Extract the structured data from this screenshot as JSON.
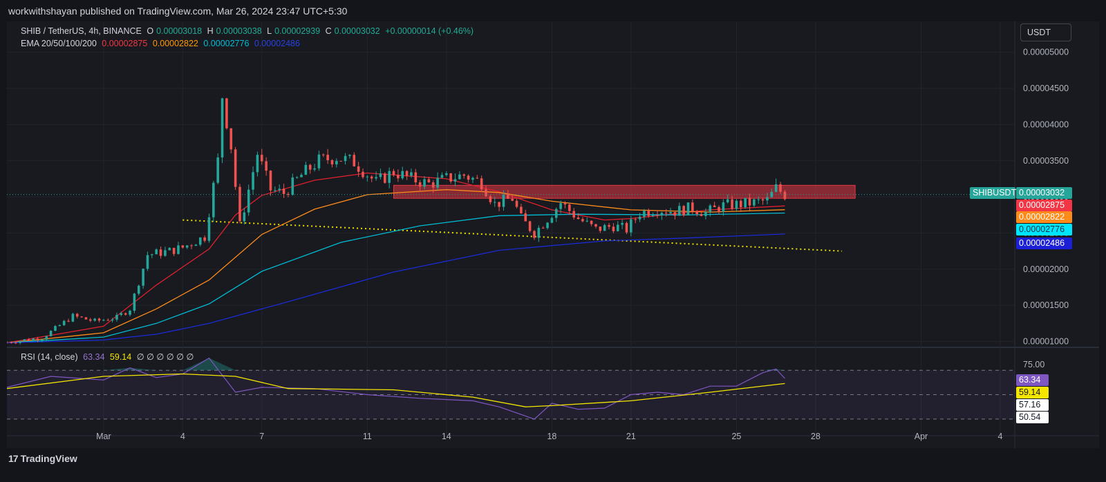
{
  "publisher": "workwithshayan published on TradingView.com, Mar 26, 2024 23:47 UTC+5:30",
  "brand": "TradingView",
  "currency_button": "USDT",
  "legend": {
    "symbol": "SHIB / TetherUS, 4h, BINANCE",
    "open_label": "O",
    "open": "0.00003018",
    "high_label": "H",
    "high": "0.00003038",
    "low_label": "L",
    "low": "0.00002939",
    "close_label": "C",
    "close": "0.00003032",
    "change": "+0.00000014 (+0.46%)",
    "ema_label": "EMA 20/50/100/200",
    "ema20": "0.00002875",
    "ema50": "0.00002822",
    "ema100": "0.00002776",
    "ema200": "0.00002486",
    "rsi_label": "RSI (14, close)",
    "rsi_value": "63.34",
    "rsi_ma": "59.14",
    "rsi_zeros": "∅ ∅ ∅ ∅ ∅ ∅"
  },
  "price_tags": {
    "symbol": "SHIBUSDT",
    "last": "0.00003032",
    "ema20": "0.00002875",
    "ema50": "0.00002822",
    "ema100": "0.00002776",
    "ema200": "0.00002486",
    "rsi": "63.34",
    "rsi_ma": "59.14",
    "rsi_hi": "57.16",
    "rsi_lo": "50.54"
  },
  "colors": {
    "up": "#26a69a",
    "down": "#ef5350",
    "ema20": "#e0202f",
    "ema50": "#ff8c1a",
    "ema100": "#00bcd4",
    "ema200": "#1b2bd6",
    "rsi": "#7e57c2",
    "rsi_ma": "#f5e600",
    "trendline": "#f0e000",
    "zone": "#e53945"
  },
  "chart_data": {
    "type": "candlestick",
    "interval": "4h",
    "y_axis": {
      "ticks": [
        "0.00001000",
        "0.00001500",
        "0.00002000",
        "0.00002500",
        "0.00003000",
        "0.00003500",
        "0.00004000",
        "0.00004500",
        "0.00005000"
      ],
      "tick_values": [
        1e-05,
        1.5e-05,
        2e-05,
        2.5e-05,
        3e-05,
        3.5e-05,
        4e-05,
        4.5e-05,
        5e-05
      ],
      "range": [
        9.85e-06,
        5.16e-05
      ]
    },
    "x_axis": {
      "ticks": [
        "Mar",
        "4",
        "7",
        "11",
        "14",
        "18",
        "21",
        "25",
        "28",
        "Apr",
        "4"
      ],
      "tick_dates": [
        "2024-03-01",
        "2024-03-04",
        "2024-03-07",
        "2024-03-11",
        "2024-03-14",
        "2024-03-18",
        "2024-03-21",
        "2024-03-25",
        "2024-03-28",
        "2024-04-01",
        "2024-04-04"
      ],
      "range": [
        "2024-02-26T08:00",
        "2024-04-04T12:00"
      ]
    },
    "close_path": [
      [
        "2024-02-26T08:00",
        9.9e-06
      ],
      [
        "2024-02-27T16:00",
        1.05e-05
      ],
      [
        "2024-02-28T20:00",
        1.35e-05
      ],
      [
        "2024-02-29T16:00",
        1.28e-05
      ],
      [
        "2024-03-01T12:00",
        1.33e-05
      ],
      [
        "2024-03-02T00:00",
        1.45e-05
      ],
      [
        "2024-03-02T16:00",
        2.2e-05
      ],
      [
        "2024-03-03T12:00",
        2.25e-05
      ],
      [
        "2024-03-04T00:00",
        2.3e-05
      ],
      [
        "2024-03-04T20:00",
        2.45e-05
      ],
      [
        "2024-03-05T08:00",
        3.5e-05
      ],
      [
        "2024-03-05T12:00",
        4.4e-05
      ],
      [
        "2024-03-05T20:00",
        3.7e-05
      ],
      [
        "2024-03-06T04:00",
        2.6e-05
      ],
      [
        "2024-03-06T12:00",
        3.1e-05
      ],
      [
        "2024-03-06T20:00",
        3.6e-05
      ],
      [
        "2024-03-07T08:00",
        3.1e-05
      ],
      [
        "2024-03-07T20:00",
        3.05e-05
      ],
      [
        "2024-03-08T12:00",
        3.3e-05
      ],
      [
        "2024-03-09T04:00",
        3.5e-05
      ],
      [
        "2024-03-09T20:00",
        3.55e-05
      ],
      [
        "2024-03-10T12:00",
        3.48e-05
      ],
      [
        "2024-03-11T08:00",
        3.2e-05
      ],
      [
        "2024-03-12T00:00",
        3.35e-05
      ],
      [
        "2024-03-12T16:00",
        3.25e-05
      ],
      [
        "2024-03-13T08:00",
        3.18e-05
      ],
      [
        "2024-03-14T00:00",
        3.25e-05
      ],
      [
        "2024-03-14T16:00",
        3.3e-05
      ],
      [
        "2024-03-15T08:00",
        3.2e-05
      ],
      [
        "2024-03-15T20:00",
        2.9e-05
      ],
      [
        "2024-03-16T12:00",
        2.98e-05
      ],
      [
        "2024-03-16T20:00",
        2.7e-05
      ],
      [
        "2024-03-17T08:00",
        2.5e-05
      ],
      [
        "2024-03-17T20:00",
        2.7e-05
      ],
      [
        "2024-03-18T08:00",
        2.92e-05
      ],
      [
        "2024-03-19T00:00",
        2.7e-05
      ],
      [
        "2024-03-19T16:00",
        2.55e-05
      ],
      [
        "2024-03-20T08:00",
        2.6e-05
      ],
      [
        "2024-03-20T20:00",
        2.55e-05
      ],
      [
        "2024-03-21T08:00",
        2.78e-05
      ],
      [
        "2024-03-22T00:00",
        2.83e-05
      ],
      [
        "2024-03-22T16:00",
        2.8e-05
      ],
      [
        "2024-03-23T08:00",
        2.85e-05
      ],
      [
        "2024-03-23T20:00",
        2.78e-05
      ],
      [
        "2024-03-24T12:00",
        2.88e-05
      ],
      [
        "2024-03-25T04:00",
        2.9e-05
      ],
      [
        "2024-03-25T16:00",
        2.92e-05
      ],
      [
        "2024-03-26T04:00",
        2.95e-05
      ],
      [
        "2024-03-26T12:00",
        3.12e-05
      ],
      [
        "2024-03-26T20:00",
        3.032e-05
      ]
    ],
    "ema_series": [
      {
        "name": "EMA 20",
        "last": 2.875e-05,
        "path": [
          [
            "2024-02-26T08:00",
            9.8e-06
          ],
          [
            "2024-03-01T00:00",
            1.21e-05
          ],
          [
            "2024-03-03T00:00",
            1.78e-05
          ],
          [
            "2024-03-05T00:00",
            2.28e-05
          ],
          [
            "2024-03-06T00:00",
            2.75e-05
          ],
          [
            "2024-03-07T00:00",
            3.02e-05
          ],
          [
            "2024-03-09T00:00",
            3.23e-05
          ],
          [
            "2024-03-11T00:00",
            3.33e-05
          ],
          [
            "2024-03-14T00:00",
            3.25e-05
          ],
          [
            "2024-03-16T00:00",
            3.07e-05
          ],
          [
            "2024-03-18T00:00",
            2.82e-05
          ],
          [
            "2024-03-20T00:00",
            2.68e-05
          ],
          [
            "2024-03-21T00:00",
            2.7e-05
          ],
          [
            "2024-03-24T00:00",
            2.82e-05
          ],
          [
            "2024-03-26T20:00",
            2.875e-05
          ]
        ]
      },
      {
        "name": "EMA 50",
        "last": 2.822e-05,
        "path": [
          [
            "2024-02-26T08:00",
            9.8e-06
          ],
          [
            "2024-03-01T00:00",
            1.12e-05
          ],
          [
            "2024-03-03T00:00",
            1.45e-05
          ],
          [
            "2024-03-05T00:00",
            1.85e-05
          ],
          [
            "2024-03-07T00:00",
            2.48e-05
          ],
          [
            "2024-03-09T00:00",
            2.83e-05
          ],
          [
            "2024-03-11T00:00",
            3.03e-05
          ],
          [
            "2024-03-14T00:00",
            3.1e-05
          ],
          [
            "2024-03-16T00:00",
            3.06e-05
          ],
          [
            "2024-03-18T00:00",
            2.94e-05
          ],
          [
            "2024-03-21T00:00",
            2.82e-05
          ],
          [
            "2024-03-24T00:00",
            2.79e-05
          ],
          [
            "2024-03-26T20:00",
            2.822e-05
          ]
        ]
      },
      {
        "name": "EMA 100",
        "last": 2.776e-05,
        "path": [
          [
            "2024-02-26T08:00",
            9.8e-06
          ],
          [
            "2024-03-01T00:00",
            1.06e-05
          ],
          [
            "2024-03-03T00:00",
            1.25e-05
          ],
          [
            "2024-03-05T00:00",
            1.52e-05
          ],
          [
            "2024-03-07T00:00",
            1.97e-05
          ],
          [
            "2024-03-10T00:00",
            2.37e-05
          ],
          [
            "2024-03-13T00:00",
            2.6e-05
          ],
          [
            "2024-03-16T00:00",
            2.74e-05
          ],
          [
            "2024-03-19T00:00",
            2.76e-05
          ],
          [
            "2024-03-23T00:00",
            2.75e-05
          ],
          [
            "2024-03-26T20:00",
            2.776e-05
          ]
        ]
      },
      {
        "name": "EMA 200",
        "last": 2.486e-05,
        "path": [
          [
            "2024-02-26T08:00",
            9.8e-06
          ],
          [
            "2024-03-01T00:00",
            1.02e-05
          ],
          [
            "2024-03-03T00:00",
            1.1e-05
          ],
          [
            "2024-03-05T00:00",
            1.25e-05
          ],
          [
            "2024-03-08T00:00",
            1.55e-05
          ],
          [
            "2024-03-12T00:00",
            1.96e-05
          ],
          [
            "2024-03-16T00:00",
            2.26e-05
          ],
          [
            "2024-03-20T00:00",
            2.39e-05
          ],
          [
            "2024-03-23T00:00",
            2.43e-05
          ],
          [
            "2024-03-26T20:00",
            2.486e-05
          ]
        ]
      }
    ],
    "trendline": [
      [
        "2024-03-04T00:00",
        2.68e-05
      ],
      [
        "2024-03-29T00:00",
        2.25e-05
      ]
    ],
    "resistance_zone": {
      "from": "2024-03-12T00:00",
      "to": "2024-03-29T12:00",
      "low": 2.98e-05,
      "high": 3.16e-05
    },
    "rsi": {
      "levels": [
        30,
        50,
        70
      ],
      "label": "75.00",
      "range": [
        22,
        82
      ],
      "path": [
        [
          "2024-02-26T08:00",
          56
        ],
        [
          "2024-02-28T00:00",
          65
        ],
        [
          "2024-03-01T00:00",
          62
        ],
        [
          "2024-03-02T00:00",
          72
        ],
        [
          "2024-03-03T00:00",
          64
        ],
        [
          "2024-03-04T00:00",
          67
        ],
        [
          "2024-03-05T00:00",
          80
        ],
        [
          "2024-03-06T00:00",
          52
        ],
        [
          "2024-03-07T00:00",
          56
        ],
        [
          "2024-03-09T00:00",
          55
        ],
        [
          "2024-03-11T00:00",
          50
        ],
        [
          "2024-03-13T00:00",
          47
        ],
        [
          "2024-03-15T00:00",
          45
        ],
        [
          "2024-03-16T00:00",
          40
        ],
        [
          "2024-03-17T08:00",
          30
        ],
        [
          "2024-03-18T00:00",
          43
        ],
        [
          "2024-03-19T00:00",
          38
        ],
        [
          "2024-03-20T00:00",
          39
        ],
        [
          "2024-03-21T00:00",
          50
        ],
        [
          "2024-03-22T00:00",
          52
        ],
        [
          "2024-03-23T00:00",
          50
        ],
        [
          "2024-03-24T00:00",
          57
        ],
        [
          "2024-03-25T00:00",
          57
        ],
        [
          "2024-03-26T00:00",
          68
        ],
        [
          "2024-03-26T12:00",
          71
        ],
        [
          "2024-03-26T20:00",
          63.34
        ]
      ],
      "ma_path": [
        [
          "2024-02-26T08:00",
          55
        ],
        [
          "2024-03-01T00:00",
          65
        ],
        [
          "2024-03-04T00:00",
          67
        ],
        [
          "2024-03-06T00:00",
          65
        ],
        [
          "2024-03-08T00:00",
          55
        ],
        [
          "2024-03-12T00:00",
          54
        ],
        [
          "2024-03-15T00:00",
          48
        ],
        [
          "2024-03-17T00:00",
          40
        ],
        [
          "2024-03-18T00:00",
          41
        ],
        [
          "2024-03-21T00:00",
          45
        ],
        [
          "2024-03-24T00:00",
          52
        ],
        [
          "2024-03-26T20:00",
          59.14
        ]
      ]
    }
  }
}
